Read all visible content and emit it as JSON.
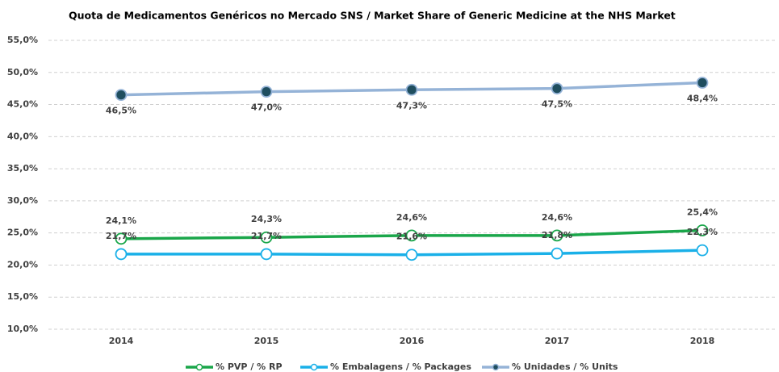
{
  "chart_data": {
    "type": "line",
    "title": "Quota de Medicamentos Genéricos no Mercado SNS / Market Share of Generic Medicine at the NHS Market",
    "categories": [
      "2014",
      "2015",
      "2016",
      "2017",
      "2018"
    ],
    "ylim": [
      10,
      55
    ],
    "yticks": [
      {
        "value": 10,
        "label": "10,0%"
      },
      {
        "value": 15,
        "label": "15,0%"
      },
      {
        "value": 20,
        "label": "20,0%"
      },
      {
        "value": 25,
        "label": "25,0%"
      },
      {
        "value": 30,
        "label": "30,0%"
      },
      {
        "value": 35,
        "label": "35,0%"
      },
      {
        "value": 40,
        "label": "40,0%"
      },
      {
        "value": 45,
        "label": "45,0%"
      },
      {
        "value": 50,
        "label": "50,0%"
      },
      {
        "value": 55,
        "label": "55,0%"
      }
    ],
    "grid": true,
    "legend": "bottom",
    "series": [
      {
        "name": "% PVP / % RP",
        "color": "#1aa64a",
        "marker_fill": "#ffffff",
        "values": [
          24.1,
          24.3,
          24.6,
          24.6,
          25.4
        ],
        "value_labels": [
          "24,1%",
          "24,3%",
          "24,6%",
          "24,6%",
          "25,4%"
        ]
      },
      {
        "name": "% Embalagens / % Packages",
        "color": "#1ab0e8",
        "marker_fill": "#ffffff",
        "values": [
          21.7,
          21.7,
          21.6,
          21.8,
          22.3
        ],
        "value_labels": [
          "21,7%",
          "21,7%",
          "21,6%",
          "21,8%",
          "22,3%"
        ]
      },
      {
        "name": "% Unidades / % Units",
        "color": "#95b3d7",
        "marker_fill": "#1f4e5f",
        "values": [
          46.5,
          47.0,
          47.3,
          47.5,
          48.4
        ],
        "value_labels": [
          "46,5%",
          "47,0%",
          "47,3%",
          "47,5%",
          "48,4%"
        ]
      }
    ]
  }
}
